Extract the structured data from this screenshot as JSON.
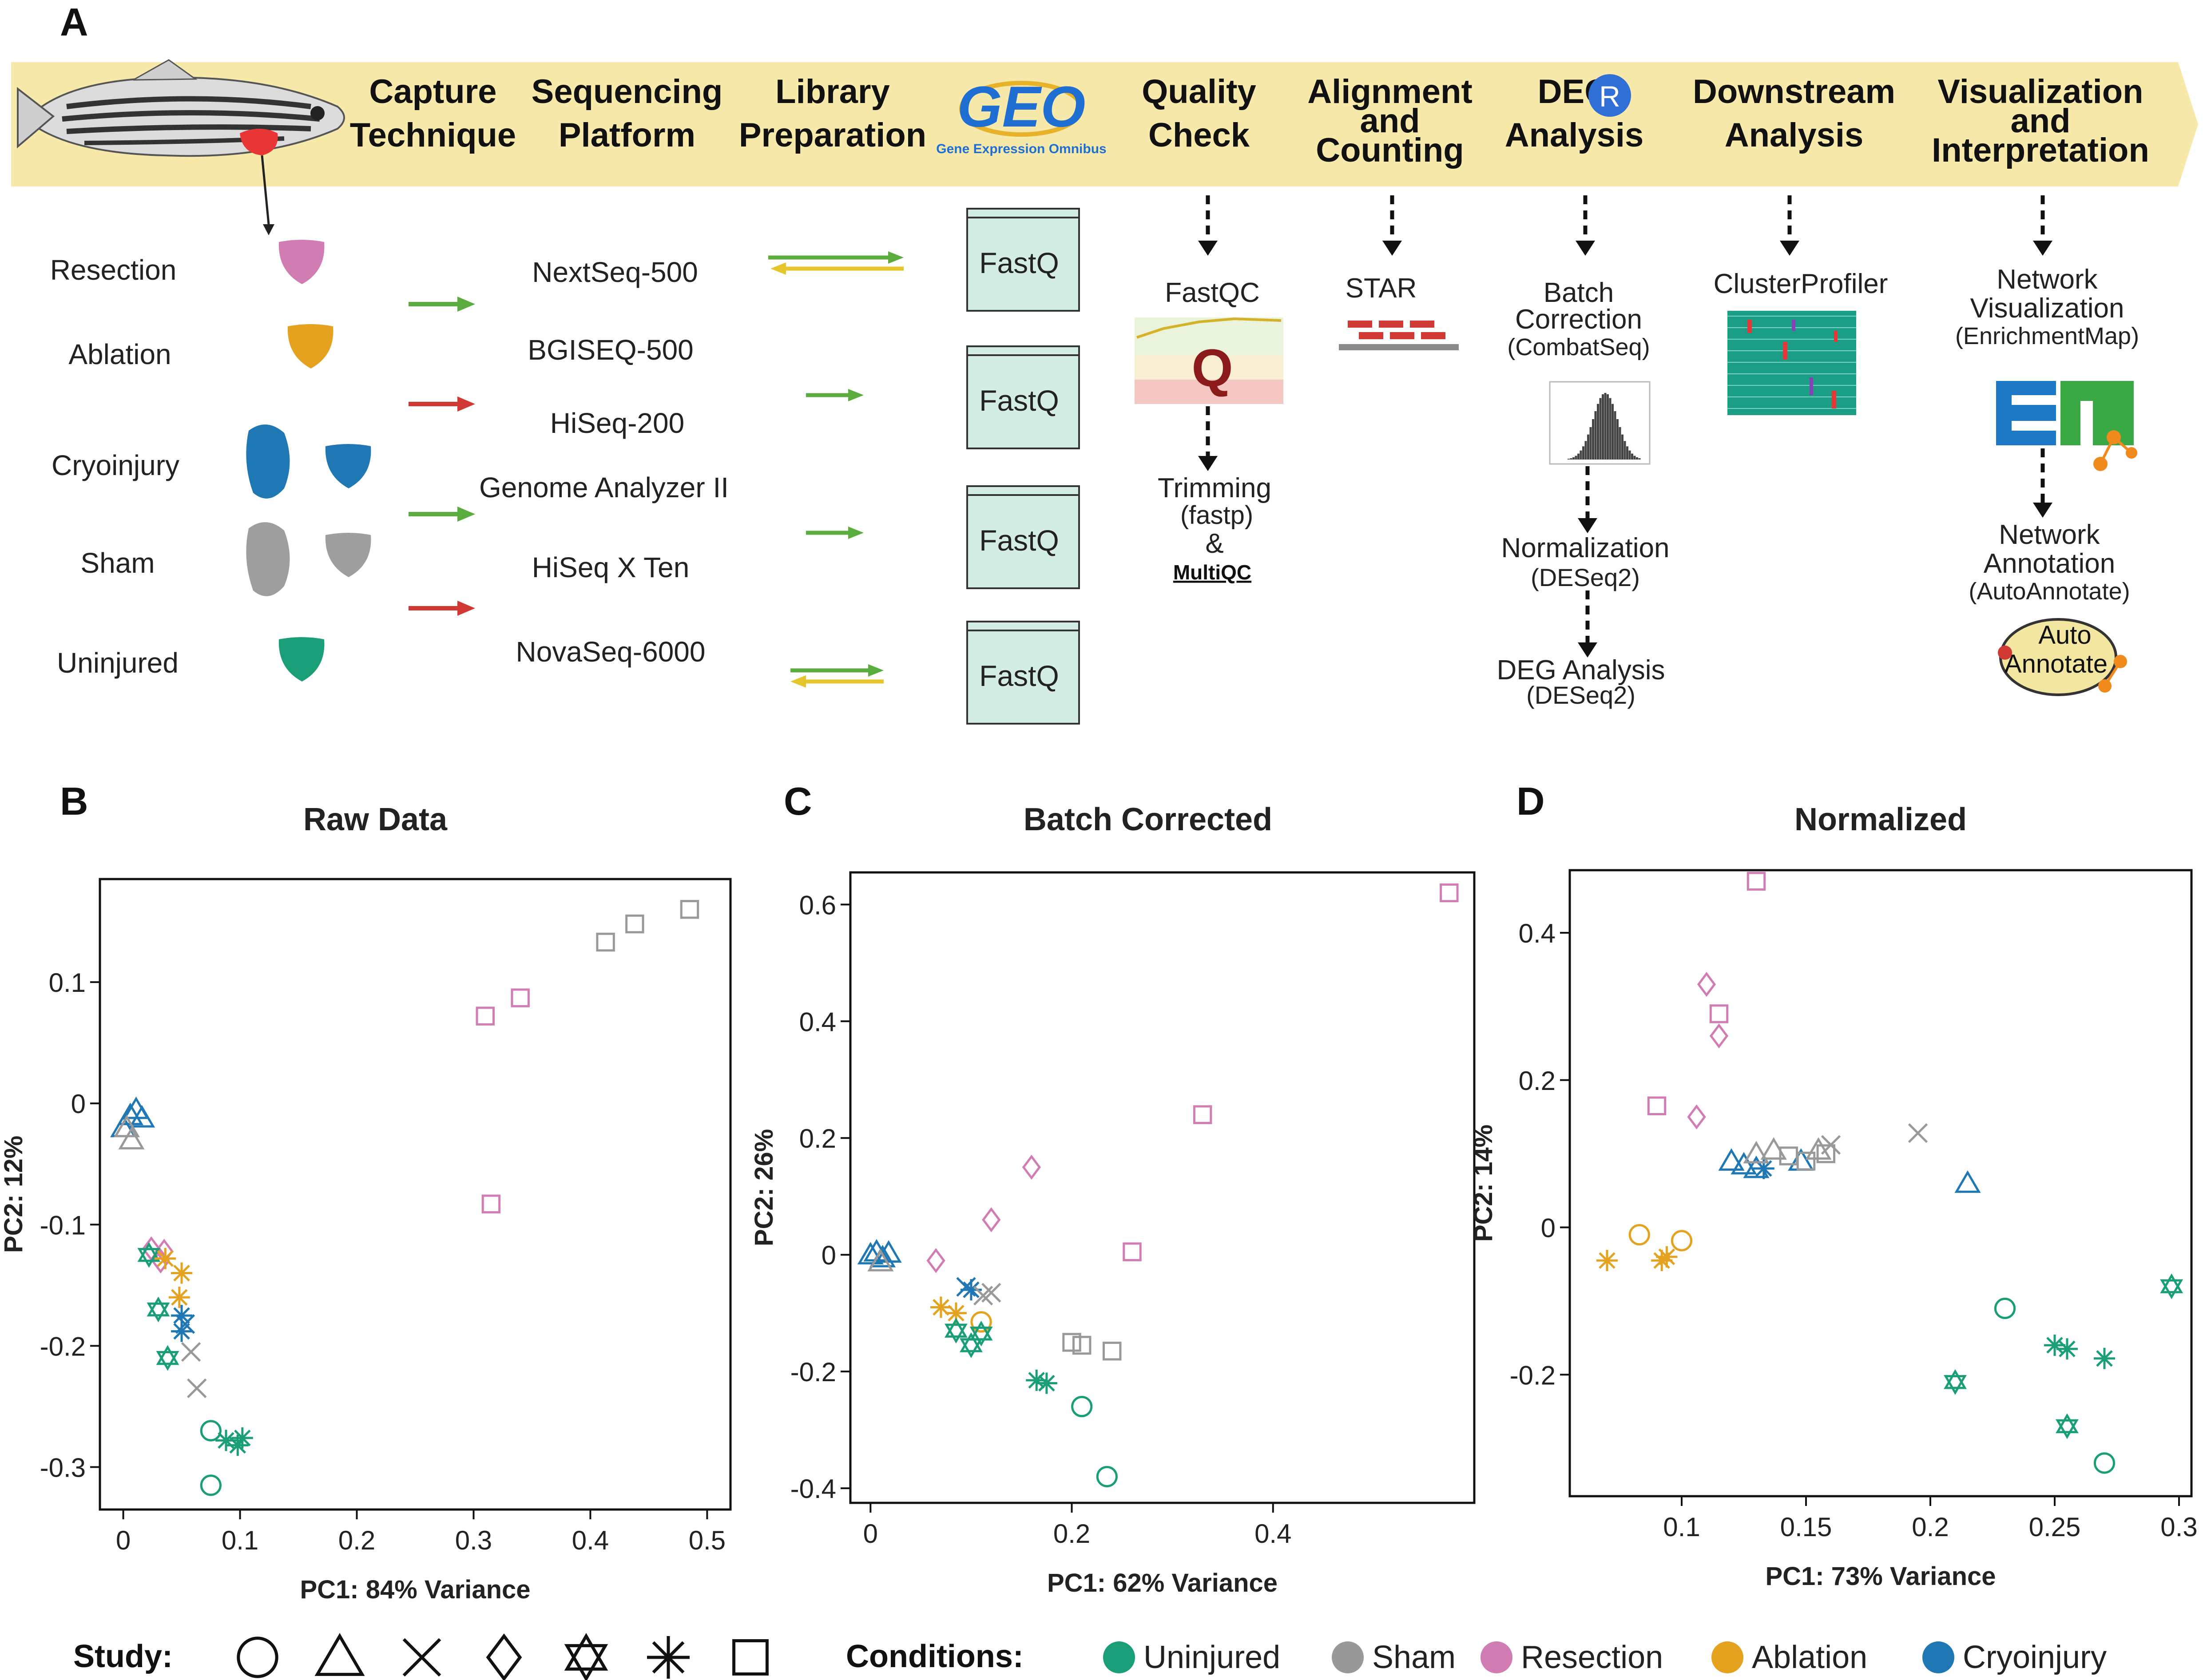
{
  "panel_labels": [
    "A",
    "B",
    "C",
    "D"
  ],
  "banner": {
    "steps": [
      [
        "Capture",
        "Technique"
      ],
      [
        "Sequencing",
        "Platform"
      ],
      [
        "Library",
        "Preparation"
      ],
      [
        "Quality",
        "Check"
      ],
      [
        "Alignment",
        "and",
        "Counting"
      ],
      [
        "DEG",
        "Analysis"
      ],
      [
        "Downstream",
        "Analysis"
      ],
      [
        "Visualization",
        "and",
        "Interpretation"
      ]
    ],
    "geo_logo": "GEO",
    "geo_subtitle": "Gene Expression Omnibus",
    "r_badge": "R"
  },
  "capture_conditions": [
    "Resection",
    "Ablation",
    "Cryoinjury",
    "Sham",
    "Uninjured"
  ],
  "platforms": [
    "NextSeq-500",
    "BGISEQ-500",
    "HiSeq-200",
    "Genome Analyzer II",
    "HiSeq X Ten",
    "NovaSeq-6000"
  ],
  "fastq_label": "FastQ",
  "quality": {
    "tool": "FastQC",
    "trimming": "Trimming",
    "trimming_tool": "(fastp)",
    "amp": "&",
    "multiqc": "MultiQC"
  },
  "alignment_tool": "STAR",
  "deg_steps": [
    [
      "Batch",
      "Correction",
      "(CombatSeq)"
    ],
    [
      "Normalization",
      "(DESeq2)"
    ],
    [
      "DEG Analysis",
      "(DESeq2)"
    ]
  ],
  "downstream_tool": "ClusterProfiler",
  "visualization": [
    [
      "Network",
      "Visualization",
      "(EnrichmentMap)"
    ],
    [
      "Network",
      "Annotation",
      "(AutoAnnotate)"
    ]
  ],
  "autoannotate_logo": [
    "Auto",
    "Annotate"
  ],
  "colors": {
    "Uninjured": "#1a9e77",
    "Sham": "#999999",
    "Resection": "#d17cb3",
    "Ablation": "#e5a21f",
    "Cryoinjury": "#1f78b4",
    "banner": "#f6e9a9",
    "fastq_fill": "#d3ede4",
    "arrow_green": "#5aac3e",
    "arrow_red": "#d13a34",
    "arrow_yellow": "#e5c62b"
  },
  "legend": {
    "study_label": "Study:",
    "study_shapes": [
      "circle",
      "triangle",
      "cross",
      "diamond",
      "star-of-david",
      "asterisk",
      "square"
    ],
    "conditions_label": "Conditions:",
    "conditions": [
      "Uninjured",
      "Sham",
      "Resection",
      "Ablation",
      "Cryoinjury"
    ]
  },
  "chart_data": [
    {
      "type": "scatter",
      "title": "Raw Data",
      "xlabel": "PC1: 84% Variance",
      "ylabel": "PC2: 12%",
      "xlim": [
        -0.02,
        0.52
      ],
      "ylim": [
        -0.335,
        0.185
      ],
      "xticks": [
        0,
        0.1,
        0.2,
        0.3,
        0.4,
        0.5
      ],
      "xtick_labels": [
        "0",
        "0.1",
        "0.2",
        "0.3",
        "0.4",
        "0.5"
      ],
      "yticks": [
        -0.3,
        -0.2,
        -0.1,
        0,
        0.1
      ],
      "ytick_labels": [
        "-0.3",
        "-0.2",
        "-0.1",
        "0",
        "0.1"
      ],
      "grid": false,
      "points": [
        {
          "x": 0.0,
          "y": -0.02,
          "study": "triangle",
          "condition": "Cryoinjury"
        },
        {
          "x": 0.006,
          "y": -0.01,
          "study": "triangle",
          "condition": "Cryoinjury"
        },
        {
          "x": 0.011,
          "y": -0.005,
          "study": "triangle",
          "condition": "Cryoinjury"
        },
        {
          "x": 0.016,
          "y": -0.012,
          "study": "triangle",
          "condition": "Cryoinjury"
        },
        {
          "x": 0.003,
          "y": -0.02,
          "study": "triangle",
          "condition": "Sham"
        },
        {
          "x": 0.007,
          "y": -0.03,
          "study": "triangle",
          "condition": "Sham"
        },
        {
          "x": 0.024,
          "y": -0.12,
          "study": "diamond",
          "condition": "Resection"
        },
        {
          "x": 0.032,
          "y": -0.13,
          "study": "diamond",
          "condition": "Resection"
        },
        {
          "x": 0.035,
          "y": -0.122,
          "study": "diamond",
          "condition": "Resection"
        },
        {
          "x": 0.022,
          "y": -0.125,
          "study": "star-of-david",
          "condition": "Uninjured"
        },
        {
          "x": 0.03,
          "y": -0.17,
          "study": "star-of-david",
          "condition": "Uninjured"
        },
        {
          "x": 0.038,
          "y": -0.21,
          "study": "star-of-david",
          "condition": "Uninjured"
        },
        {
          "x": 0.036,
          "y": -0.128,
          "study": "asterisk",
          "condition": "Ablation"
        },
        {
          "x": 0.05,
          "y": -0.14,
          "study": "asterisk",
          "condition": "Ablation"
        },
        {
          "x": 0.048,
          "y": -0.16,
          "study": "asterisk",
          "condition": "Ablation"
        },
        {
          "x": 0.05,
          "y": -0.175,
          "study": "asterisk",
          "condition": "Cryoinjury"
        },
        {
          "x": 0.05,
          "y": -0.188,
          "study": "asterisk",
          "condition": "Cryoinjury"
        },
        {
          "x": 0.053,
          "y": -0.182,
          "study": "cross",
          "condition": "Cryoinjury"
        },
        {
          "x": 0.058,
          "y": -0.205,
          "study": "cross",
          "condition": "Sham"
        },
        {
          "x": 0.063,
          "y": -0.235,
          "study": "cross",
          "condition": "Sham"
        },
        {
          "x": 0.075,
          "y": -0.27,
          "study": "circle",
          "condition": "Uninjured"
        },
        {
          "x": 0.075,
          "y": -0.315,
          "study": "circle",
          "condition": "Uninjured"
        },
        {
          "x": 0.088,
          "y": -0.278,
          "study": "asterisk",
          "condition": "Uninjured"
        },
        {
          "x": 0.098,
          "y": -0.282,
          "study": "asterisk",
          "condition": "Uninjured"
        },
        {
          "x": 0.102,
          "y": -0.276,
          "study": "asterisk",
          "condition": "Uninjured"
        },
        {
          "x": 0.31,
          "y": 0.072,
          "study": "square",
          "condition": "Resection"
        },
        {
          "x": 0.34,
          "y": 0.087,
          "study": "square",
          "condition": "Resection"
        },
        {
          "x": 0.315,
          "y": -0.083,
          "study": "square",
          "condition": "Resection"
        },
        {
          "x": 0.413,
          "y": 0.133,
          "study": "square",
          "condition": "Sham"
        },
        {
          "x": 0.438,
          "y": 0.148,
          "study": "square",
          "condition": "Sham"
        },
        {
          "x": 0.485,
          "y": 0.16,
          "study": "square",
          "condition": "Sham"
        }
      ]
    },
    {
      "type": "scatter",
      "title": "Batch Corrected",
      "xlabel": "PC1: 62% Variance",
      "ylabel": "PC2: 26%",
      "xlim": [
        -0.02,
        0.6
      ],
      "ylim": [
        -0.425,
        0.655
      ],
      "xticks": [
        0,
        0.2,
        0.4
      ],
      "xtick_labels": [
        "0",
        "0.2",
        "0.4"
      ],
      "yticks": [
        -0.4,
        -0.2,
        0,
        0.2,
        0.4,
        0.6
      ],
      "ytick_labels": [
        "-0.4",
        "-0.2",
        "0",
        "0.2",
        "0.4",
        "0.6"
      ],
      "grid": false,
      "points": [
        {
          "x": 0.0,
          "y": 0.0,
          "study": "triangle",
          "condition": "Cryoinjury"
        },
        {
          "x": 0.006,
          "y": 0.005,
          "study": "triangle",
          "condition": "Cryoinjury"
        },
        {
          "x": 0.012,
          "y": -0.005,
          "study": "triangle",
          "condition": "Cryoinjury"
        },
        {
          "x": 0.018,
          "y": 0.003,
          "study": "triangle",
          "condition": "Cryoinjury"
        },
        {
          "x": 0.01,
          "y": -0.012,
          "study": "triangle",
          "condition": "Sham"
        },
        {
          "x": 0.065,
          "y": -0.01,
          "study": "diamond",
          "condition": "Resection"
        },
        {
          "x": 0.12,
          "y": 0.06,
          "study": "diamond",
          "condition": "Resection"
        },
        {
          "x": 0.16,
          "y": 0.15,
          "study": "diamond",
          "condition": "Resection"
        },
        {
          "x": 0.07,
          "y": -0.09,
          "study": "asterisk",
          "condition": "Ablation"
        },
        {
          "x": 0.085,
          "y": -0.1,
          "study": "asterisk",
          "condition": "Ablation"
        },
        {
          "x": 0.11,
          "y": -0.115,
          "study": "circle",
          "condition": "Ablation"
        },
        {
          "x": 0.085,
          "y": -0.13,
          "study": "star-of-david",
          "condition": "Uninjured"
        },
        {
          "x": 0.1,
          "y": -0.155,
          "study": "star-of-david",
          "condition": "Uninjured"
        },
        {
          "x": 0.11,
          "y": -0.135,
          "study": "star-of-david",
          "condition": "Uninjured"
        },
        {
          "x": 0.095,
          "y": -0.055,
          "study": "cross",
          "condition": "Cryoinjury"
        },
        {
          "x": 0.1,
          "y": -0.06,
          "study": "asterisk",
          "condition": "Cryoinjury"
        },
        {
          "x": 0.112,
          "y": -0.07,
          "study": "cross",
          "condition": "Sham"
        },
        {
          "x": 0.12,
          "y": -0.065,
          "study": "cross",
          "condition": "Sham"
        },
        {
          "x": 0.165,
          "y": -0.215,
          "study": "asterisk",
          "condition": "Uninjured"
        },
        {
          "x": 0.175,
          "y": -0.22,
          "study": "asterisk",
          "condition": "Uninjured"
        },
        {
          "x": 0.21,
          "y": -0.26,
          "study": "circle",
          "condition": "Uninjured"
        },
        {
          "x": 0.235,
          "y": -0.38,
          "study": "circle",
          "condition": "Uninjured"
        },
        {
          "x": 0.2,
          "y": -0.15,
          "study": "square",
          "condition": "Sham"
        },
        {
          "x": 0.21,
          "y": -0.155,
          "study": "square",
          "condition": "Sham"
        },
        {
          "x": 0.24,
          "y": -0.165,
          "study": "square",
          "condition": "Sham"
        },
        {
          "x": 0.26,
          "y": 0.005,
          "study": "square",
          "condition": "Resection"
        },
        {
          "x": 0.33,
          "y": 0.24,
          "study": "square",
          "condition": "Resection"
        },
        {
          "x": 0.575,
          "y": 0.62,
          "study": "square",
          "condition": "Resection"
        }
      ]
    },
    {
      "type": "scatter",
      "title": "Normalized",
      "xlabel": "PC1: 73% Variance",
      "ylabel": "PC2: 14%",
      "xlim": [
        0.055,
        0.305
      ],
      "ylim": [
        -0.365,
        0.485
      ],
      "xticks": [
        0.1,
        0.15,
        0.2,
        0.25,
        0.3
      ],
      "xtick_labels": [
        "0.1",
        "0.15",
        "0.2",
        "0.25",
        "0.3"
      ],
      "yticks": [
        -0.2,
        0,
        0.2,
        0.4
      ],
      "ytick_labels": [
        "-0.2",
        "0",
        "0.2",
        "0.4"
      ],
      "grid": false,
      "points": [
        {
          "x": 0.07,
          "y": -0.045,
          "study": "asterisk",
          "condition": "Ablation"
        },
        {
          "x": 0.092,
          "y": -0.045,
          "study": "asterisk",
          "condition": "Ablation"
        },
        {
          "x": 0.094,
          "y": -0.04,
          "study": "asterisk",
          "condition": "Ablation"
        },
        {
          "x": 0.083,
          "y": -0.01,
          "study": "circle",
          "condition": "Ablation"
        },
        {
          "x": 0.1,
          "y": -0.018,
          "study": "circle",
          "condition": "Ablation"
        },
        {
          "x": 0.09,
          "y": 0.165,
          "study": "square",
          "condition": "Resection"
        },
        {
          "x": 0.106,
          "y": 0.15,
          "study": "diamond",
          "condition": "Resection"
        },
        {
          "x": 0.11,
          "y": 0.33,
          "study": "diamond",
          "condition": "Resection"
        },
        {
          "x": 0.115,
          "y": 0.26,
          "study": "diamond",
          "condition": "Resection"
        },
        {
          "x": 0.115,
          "y": 0.29,
          "study": "square",
          "condition": "Resection"
        },
        {
          "x": 0.13,
          "y": 0.47,
          "study": "square",
          "condition": "Resection"
        },
        {
          "x": 0.12,
          "y": 0.09,
          "study": "triangle",
          "condition": "Cryoinjury"
        },
        {
          "x": 0.125,
          "y": 0.085,
          "study": "triangle",
          "condition": "Cryoinjury"
        },
        {
          "x": 0.13,
          "y": 0.08,
          "study": "triangle",
          "condition": "Cryoinjury"
        },
        {
          "x": 0.133,
          "y": 0.08,
          "study": "asterisk",
          "condition": "Cryoinjury"
        },
        {
          "x": 0.148,
          "y": 0.09,
          "study": "triangle",
          "condition": "Cryoinjury"
        },
        {
          "x": 0.215,
          "y": 0.06,
          "study": "triangle",
          "condition": "Cryoinjury"
        },
        {
          "x": 0.13,
          "y": 0.1,
          "study": "triangle",
          "condition": "Sham"
        },
        {
          "x": 0.137,
          "y": 0.105,
          "study": "triangle",
          "condition": "Sham"
        },
        {
          "x": 0.143,
          "y": 0.097,
          "study": "square",
          "condition": "Sham"
        },
        {
          "x": 0.15,
          "y": 0.09,
          "study": "square",
          "condition": "Sham"
        },
        {
          "x": 0.155,
          "y": 0.105,
          "study": "triangle",
          "condition": "Sham"
        },
        {
          "x": 0.158,
          "y": 0.1,
          "study": "square",
          "condition": "Sham"
        },
        {
          "x": 0.16,
          "y": 0.112,
          "study": "cross",
          "condition": "Sham"
        },
        {
          "x": 0.195,
          "y": 0.128,
          "study": "cross",
          "condition": "Sham"
        },
        {
          "x": 0.21,
          "y": -0.21,
          "study": "star-of-david",
          "condition": "Uninjured"
        },
        {
          "x": 0.23,
          "y": -0.11,
          "study": "circle",
          "condition": "Uninjured"
        },
        {
          "x": 0.25,
          "y": -0.16,
          "study": "asterisk",
          "condition": "Uninjured"
        },
        {
          "x": 0.255,
          "y": -0.165,
          "study": "asterisk",
          "condition": "Uninjured"
        },
        {
          "x": 0.255,
          "y": -0.27,
          "study": "star-of-david",
          "condition": "Uninjured"
        },
        {
          "x": 0.27,
          "y": -0.178,
          "study": "asterisk",
          "condition": "Uninjured"
        },
        {
          "x": 0.27,
          "y": -0.32,
          "study": "circle",
          "condition": "Uninjured"
        },
        {
          "x": 0.297,
          "y": -0.08,
          "study": "star-of-david",
          "condition": "Uninjured"
        }
      ]
    }
  ]
}
